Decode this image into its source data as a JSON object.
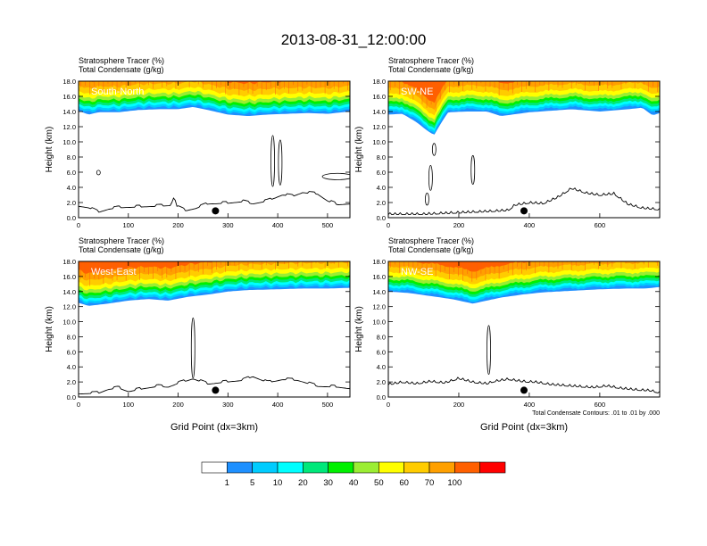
{
  "title": "2013-08-31_12:00:00",
  "chart_data": [
    {
      "type": "area",
      "name": "South-North",
      "label": "South-North",
      "header": [
        "Stratosphere Tracer   (%)",
        "Total Condensate   (g/kg)"
      ],
      "ylabel": "Height (km)",
      "xlabel": "",
      "xlim": [
        0,
        545
      ],
      "ylim": [
        0,
        18
      ],
      "xticks": [
        0,
        100,
        200,
        300,
        400,
        500
      ],
      "yticks": [
        "0.0",
        "2.0",
        "4.0",
        "6.0",
        "8.0",
        "10.0",
        "12.0",
        "14.0",
        "16.0",
        "18.0"
      ],
      "tracer_bottom_km": [
        [
          0,
          14.1
        ],
        [
          20,
          13.6
        ],
        [
          40,
          13.9
        ],
        [
          80,
          13.9
        ],
        [
          120,
          14.2
        ],
        [
          160,
          14.3
        ],
        [
          200,
          14.3
        ],
        [
          230,
          14.6
        ],
        [
          260,
          14.2
        ],
        [
          300,
          13.6
        ],
        [
          340,
          13.4
        ],
        [
          380,
          13.6
        ],
        [
          420,
          13.7
        ],
        [
          460,
          13.8
        ],
        [
          500,
          13.7
        ],
        [
          545,
          14.0
        ]
      ],
      "terrain_km": [
        [
          0,
          1.5
        ],
        [
          20,
          1.3
        ],
        [
          40,
          0.7
        ],
        [
          60,
          1.1
        ],
        [
          80,
          1.3
        ],
        [
          120,
          1.4
        ],
        [
          160,
          1.5
        ],
        [
          185,
          1.6
        ],
        [
          192,
          2.8
        ],
        [
          198,
          1.4
        ],
        [
          215,
          0.9
        ],
        [
          235,
          1.2
        ],
        [
          260,
          1.8
        ],
        [
          300,
          1.9
        ],
        [
          330,
          2.1
        ],
        [
          350,
          1.8
        ],
        [
          380,
          2.2
        ],
        [
          410,
          3.0
        ],
        [
          430,
          2.8
        ],
        [
          450,
          3.3
        ],
        [
          480,
          3.1
        ],
        [
          500,
          2.2
        ],
        [
          520,
          1.7
        ],
        [
          545,
          1.8
        ]
      ],
      "cloud_contours": [
        {
          "x": 520,
          "y": 305,
          "w": 500,
          "h": 585
        },
        {
          "x": 40,
          "y": 21,
          "w": 565,
          "h": 625
        },
        {
          "x": 405,
          "y": 25,
          "w": 430,
          "h": 1025
        },
        {
          "x": 390,
          "y": 15,
          "w": 410,
          "h": 1085
        }
      ],
      "marker_x": 275
    },
    {
      "type": "area",
      "name": "SW-NE",
      "label": "SW-NE",
      "header": [
        "Stratosphere Tracer   (%)",
        "Total Condensate   (g/kg)"
      ],
      "ylabel": "Height (km)",
      "xlabel": "",
      "xlim": [
        0,
        770
      ],
      "ylim": [
        0,
        18
      ],
      "xticks": [
        0,
        200,
        400,
        600
      ],
      "yticks": [
        "0.0",
        "2.0",
        "4.0",
        "6.0",
        "8.0",
        "10.0",
        "12.0",
        "14.0",
        "16.0",
        "18.0"
      ],
      "tracer_bottom_km": [
        [
          0,
          13.6
        ],
        [
          40,
          13.7
        ],
        [
          80,
          12.6
        ],
        [
          110,
          11.5
        ],
        [
          130,
          10.9
        ],
        [
          150,
          12.5
        ],
        [
          170,
          13.9
        ],
        [
          220,
          14.0
        ],
        [
          280,
          14.0
        ],
        [
          320,
          13.4
        ],
        [
          400,
          13.9
        ],
        [
          460,
          14.1
        ],
        [
          520,
          14.3
        ],
        [
          600,
          14.0
        ],
        [
          680,
          14.3
        ],
        [
          720,
          14.5
        ],
        [
          750,
          13.5
        ],
        [
          770,
          13.8
        ]
      ],
      "terrain_km": [
        [
          0,
          0.4
        ],
        [
          100,
          0.4
        ],
        [
          200,
          0.6
        ],
        [
          250,
          0.7
        ],
        [
          300,
          0.8
        ],
        [
          340,
          0.9
        ],
        [
          360,
          1.6
        ],
        [
          400,
          1.9
        ],
        [
          440,
          1.8
        ],
        [
          480,
          2.6
        ],
        [
          520,
          3.8
        ],
        [
          560,
          3.2
        ],
        [
          600,
          2.9
        ],
        [
          640,
          3.1
        ],
        [
          680,
          1.7
        ],
        [
          720,
          1.2
        ],
        [
          770,
          1.0
        ]
      ],
      "cloud_contours": [
        {
          "x": 110,
          "y": 36,
          "w": 325,
          "h": 165
        },
        {
          "x": 240,
          "y": 32,
          "w": 440,
          "h": 820
        },
        {
          "x": 120,
          "y": 6,
          "w": 360,
          "h": 690
        },
        {
          "x": 130,
          "y": 1,
          "w": 820,
          "h": 980
        }
      ],
      "marker_x": 385
    },
    {
      "type": "area",
      "name": "West-East",
      "label": "West-East",
      "header": [
        "Stratosphere Tracer   (%)",
        "Total Condensate   (g/kg)"
      ],
      "ylabel": "Height (km)",
      "xlabel": "Grid Point (dx=3km)",
      "xlim": [
        0,
        545
      ],
      "ylim": [
        0,
        18
      ],
      "xticks": [
        0,
        100,
        200,
        300,
        400,
        500
      ],
      "yticks": [
        "0.0",
        "2.0",
        "4.0",
        "6.0",
        "8.0",
        "10.0",
        "12.0",
        "14.0",
        "16.0",
        "18.0"
      ],
      "tracer_bottom_km": [
        [
          0,
          12.5
        ],
        [
          20,
          12.1
        ],
        [
          60,
          12.4
        ],
        [
          100,
          12.8
        ],
        [
          140,
          13.0
        ],
        [
          180,
          12.8
        ],
        [
          220,
          13.3
        ],
        [
          260,
          13.6
        ],
        [
          300,
          14.0
        ],
        [
          340,
          14.2
        ],
        [
          400,
          14.3
        ],
        [
          450,
          14.4
        ],
        [
          500,
          14.4
        ],
        [
          545,
          14.5
        ]
      ],
      "terrain_km": [
        [
          0,
          0.4
        ],
        [
          40,
          0.5
        ],
        [
          60,
          1.0
        ],
        [
          80,
          1.2
        ],
        [
          100,
          0.7
        ],
        [
          130,
          1.1
        ],
        [
          160,
          1.4
        ],
        [
          180,
          1.3
        ],
        [
          200,
          1.8
        ],
        [
          230,
          2.4
        ],
        [
          260,
          1.7
        ],
        [
          300,
          2.0
        ],
        [
          330,
          2.2
        ],
        [
          350,
          2.7
        ],
        [
          380,
          1.9
        ],
        [
          410,
          2.3
        ],
        [
          440,
          2.2
        ],
        [
          480,
          1.4
        ],
        [
          520,
          1.3
        ],
        [
          545,
          1.1
        ]
      ],
      "cloud_contours": [
        {
          "x": 230,
          "y": 20,
          "w": 250,
          "h": 1050
        }
      ],
      "marker_x": 275
    },
    {
      "type": "area",
      "name": "NW-SE",
      "label": "NW-SE",
      "header": [
        "Stratosphere Tracer   (%)",
        "Total Condensate   (g/kg)"
      ],
      "ylabel": "Height (km)",
      "xlabel": "Grid Point (dx=3km)",
      "xlim": [
        0,
        770
      ],
      "ylim": [
        0,
        18
      ],
      "xticks": [
        0,
        200,
        400,
        600
      ],
      "yticks": [
        "0.0",
        "2.0",
        "4.0",
        "6.0",
        "8.0",
        "10.0",
        "12.0",
        "14.0",
        "16.0",
        "18.0"
      ],
      "tracer_bottom_km": [
        [
          0,
          14.0
        ],
        [
          60,
          13.8
        ],
        [
          120,
          13.4
        ],
        [
          180,
          13.0
        ],
        [
          240,
          12.4
        ],
        [
          280,
          12.8
        ],
        [
          320,
          13.2
        ],
        [
          380,
          13.6
        ],
        [
          440,
          13.9
        ],
        [
          520,
          14.1
        ],
        [
          600,
          14.3
        ],
        [
          680,
          14.4
        ],
        [
          730,
          14.4
        ],
        [
          770,
          14.6
        ]
      ],
      "terrain_km": [
        [
          0,
          1.6
        ],
        [
          40,
          1.9
        ],
        [
          80,
          1.7
        ],
        [
          120,
          2.0
        ],
        [
          160,
          1.8
        ],
        [
          200,
          2.4
        ],
        [
          240,
          1.9
        ],
        [
          280,
          1.7
        ],
        [
          300,
          2.0
        ],
        [
          340,
          2.3
        ],
        [
          380,
          2.0
        ],
        [
          420,
          1.9
        ],
        [
          460,
          1.6
        ],
        [
          520,
          1.4
        ],
        [
          580,
          1.2
        ],
        [
          620,
          1.4
        ],
        [
          660,
          1.1
        ],
        [
          700,
          0.9
        ],
        [
          740,
          0.8
        ],
        [
          770,
          0.5
        ]
      ],
      "cloud_contours": [
        {
          "x": 285,
          "y": 22,
          "w": 300,
          "h": 950
        }
      ],
      "marker_x": 385,
      "footnote": "Total Condensate Contours: .01 to .01 by .000"
    }
  ],
  "colorbar": {
    "labels": [
      "1",
      "5",
      "10",
      "20",
      "30",
      "40",
      "50",
      "60",
      "70",
      "100"
    ],
    "colors": [
      "#ffffff",
      "#1e90ff",
      "#00ccff",
      "#00ffff",
      "#00e87a",
      "#00f000",
      "#9bed33",
      "#ffff00",
      "#ffcc00",
      "#ffa000",
      "#ff6000",
      "#ff0000"
    ]
  }
}
